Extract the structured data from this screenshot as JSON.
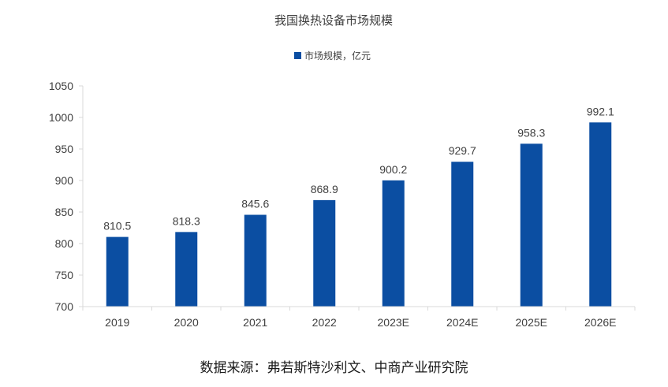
{
  "chart_data": {
    "type": "bar",
    "title": "我国换热设备市场规模",
    "categories": [
      "2019",
      "2020",
      "2021",
      "2022",
      "2023E",
      "2024E",
      "2025E",
      "2026E"
    ],
    "series": [
      {
        "name": "市场规模，亿元",
        "values": [
          810.5,
          818.3,
          845.6,
          868.9,
          900.2,
          929.7,
          958.3,
          992.1
        ]
      }
    ],
    "data_labels": [
      "810.5",
      "818.3",
      "845.6",
      "868.9",
      "900.2",
      "929.7",
      "958.3",
      "992.1"
    ],
    "yticks": [
      "700",
      "750",
      "800",
      "850",
      "900",
      "950",
      "1000",
      "1050"
    ],
    "ylim": [
      700,
      1050
    ],
    "xlabel": "",
    "ylabel": "",
    "grid": false,
    "legend_position": "top-center",
    "bar_color": "#0b4ea2",
    "axis_color": "#d9d9d9"
  },
  "footer": {
    "source": "数据来源：弗若斯特沙利文、中商产业研究院"
  }
}
